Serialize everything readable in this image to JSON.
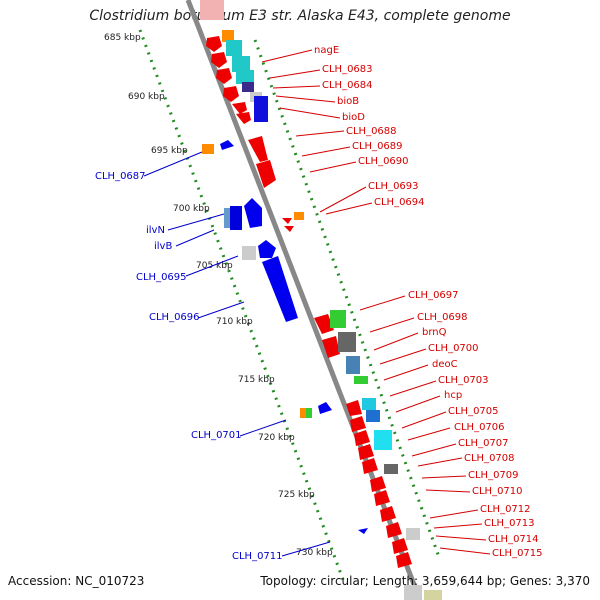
{
  "title": "Clostridium botulinum E3 str. Alaska E43, complete genome",
  "footer": {
    "accession": "Accession: NC_010723",
    "summary": "Topology: circular; Length: 3,659,644 bp; Genes: 3,370"
  },
  "kbp_ticks": [
    "685 kbp",
    "690 kbp",
    "695 kbp",
    "700 kbp",
    "705 kbp",
    "710 kbp",
    "715 kbp",
    "720 kbp",
    "725 kbp",
    "730 kbp"
  ],
  "right_labels": [
    "nagE",
    "CLH_0683",
    "CLH_0684",
    "bioB",
    "bioD",
    "CLH_0688",
    "CLH_0689",
    "CLH_0690",
    "CLH_0693",
    "CLH_0694",
    "CLH_0697",
    "CLH_0698",
    "brnQ",
    "CLH_0700",
    "deoC",
    "CLH_0703",
    "hcp",
    "CLH_0705",
    "CLH_0706",
    "CLH_0707",
    "CLH_0708",
    "CLH_0709",
    "CLH_0710",
    "CLH_0712",
    "CLH_0713",
    "CLH_0714",
    "CLH_0715"
  ],
  "left_labels": [
    "CLH_0687",
    "ilvN",
    "ilvB",
    "CLH_0695",
    "CLH_0696",
    "CLH_0701",
    "CLH_0711"
  ],
  "colors": {
    "forward_strand": "#ee0000",
    "reverse_strand": "#0000ee",
    "backbone": "#888888",
    "tick_dots": "#228b22",
    "right_label": "#d40000",
    "left_label": "#0000cc"
  }
}
